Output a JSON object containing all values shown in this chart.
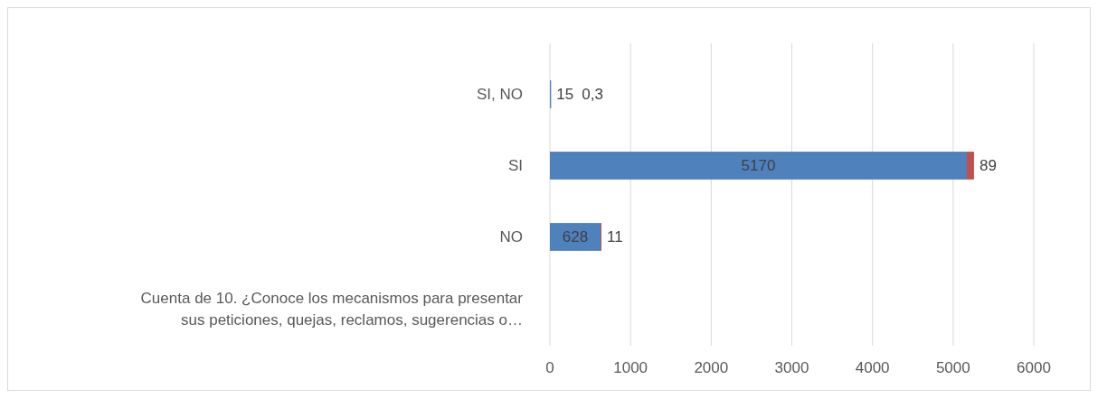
{
  "chart_data": {
    "type": "bar",
    "orientation": "horizontal",
    "stacked": true,
    "categories": [
      "SI, NO",
      "SI",
      "NO",
      "Cuenta de 10. ¿Conoce los mecanismos para presentar sus peticiones, quejas, reclamos, sugerencias o…"
    ],
    "series": [
      {
        "color": "#4f81bd",
        "values": [
          15,
          5170,
          628,
          null
        ],
        "value_labels": [
          "15",
          "5170",
          "628",
          null
        ]
      },
      {
        "color": "#c0504d",
        "values": [
          0.3,
          89,
          11,
          null
        ],
        "value_labels": [
          "0,3",
          "89",
          "11",
          null
        ]
      }
    ],
    "xlim": [
      0,
      6000
    ],
    "xticks": [
      0,
      1000,
      2000,
      3000,
      4000,
      5000,
      6000
    ],
    "grid": "x"
  }
}
